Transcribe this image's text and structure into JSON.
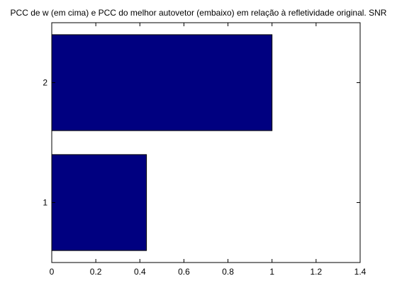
{
  "chart_data": {
    "type": "bar",
    "orientation": "horizontal",
    "title": "PCC de w (em cima) e PCC do melhor autovetor (embaixo) em relação à refletividade original. SNR",
    "xlabel": "",
    "ylabel": "",
    "categories": [
      "1",
      "2"
    ],
    "values": [
      0.43,
      1.0
    ],
    "xlim": [
      0,
      1.4
    ],
    "xticks": [
      "0",
      "0.2",
      "0.4",
      "0.6",
      "0.8",
      "1",
      "1.2",
      "1.4"
    ],
    "yticks": [
      "1",
      "2"
    ],
    "grid": false,
    "bar_color": "#000080",
    "axes_color": "#000000",
    "background_color": "#ffffff"
  }
}
